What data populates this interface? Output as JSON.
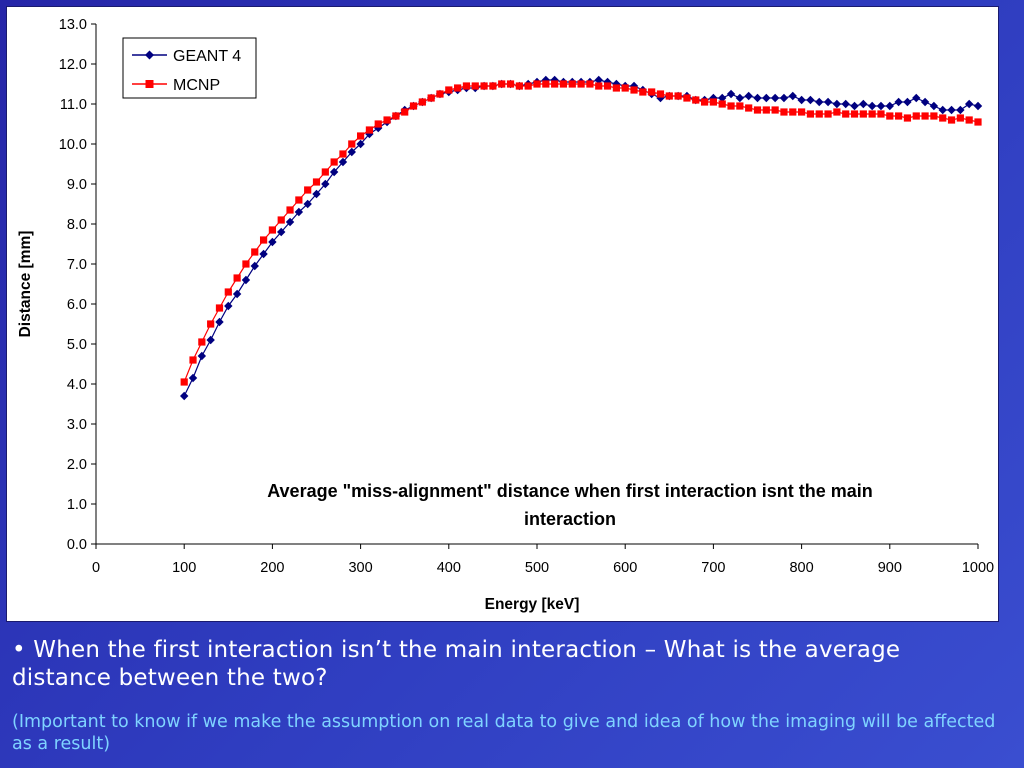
{
  "chart_data": {
    "type": "line",
    "title": "Average \"miss-alignment\" distance when first interaction isnt the main interaction",
    "title_lines": [
      "Average \"miss-alignment\" distance when first interaction isnt the main",
      "interaction"
    ],
    "xlabel": "Energy [keV]",
    "ylabel": "Distance [mm]",
    "xlim": [
      0,
      1000
    ],
    "ylim": [
      0,
      13
    ],
    "x_ticks": [
      "0",
      "100",
      "200",
      "300",
      "400",
      "500",
      "600",
      "700",
      "800",
      "900",
      "1000"
    ],
    "y_ticks": [
      "0.0",
      "1.0",
      "2.0",
      "3.0",
      "4.0",
      "5.0",
      "6.0",
      "7.0",
      "8.0",
      "9.0",
      "10.0",
      "11.0",
      "12.0",
      "13.0"
    ],
    "grid": false,
    "legend_position": "top-left",
    "series": [
      {
        "name": "GEANT 4",
        "color": "#000080",
        "marker": "diamond",
        "x": [
          100,
          110,
          120,
          130,
          140,
          150,
          160,
          170,
          180,
          190,
          200,
          210,
          220,
          230,
          240,
          250,
          260,
          270,
          280,
          290,
          300,
          310,
          320,
          330,
          340,
          350,
          360,
          370,
          380,
          390,
          400,
          410,
          420,
          430,
          440,
          450,
          460,
          470,
          480,
          490,
          500,
          510,
          520,
          530,
          540,
          550,
          560,
          570,
          580,
          590,
          600,
          610,
          620,
          630,
          640,
          650,
          660,
          670,
          680,
          690,
          700,
          710,
          720,
          730,
          740,
          750,
          760,
          770,
          780,
          790,
          800,
          810,
          820,
          830,
          840,
          850,
          860,
          870,
          880,
          890,
          900,
          910,
          920,
          930,
          940,
          950,
          960,
          970,
          980,
          990,
          1000
        ],
        "y": [
          3.7,
          4.15,
          4.7,
          5.1,
          5.55,
          5.95,
          6.25,
          6.6,
          6.95,
          7.25,
          7.55,
          7.8,
          8.05,
          8.3,
          8.5,
          8.75,
          9.0,
          9.3,
          9.55,
          9.8,
          10.0,
          10.25,
          10.4,
          10.55,
          10.7,
          10.85,
          10.95,
          11.05,
          11.15,
          11.25,
          11.3,
          11.35,
          11.4,
          11.4,
          11.45,
          11.45,
          11.5,
          11.5,
          11.45,
          11.5,
          11.55,
          11.6,
          11.6,
          11.55,
          11.55,
          11.55,
          11.55,
          11.6,
          11.55,
          11.5,
          11.45,
          11.45,
          11.35,
          11.25,
          11.15,
          11.2,
          11.2,
          11.2,
          11.1,
          11.1,
          11.15,
          11.15,
          11.25,
          11.15,
          11.2,
          11.15,
          11.15,
          11.15,
          11.15,
          11.2,
          11.1,
          11.1,
          11.05,
          11.05,
          11.0,
          11.0,
          10.95,
          11.0,
          10.95,
          10.95,
          10.95,
          11.05,
          11.05,
          11.15,
          11.05,
          10.95,
          10.85,
          10.85,
          10.85,
          11.0,
          10.95
        ]
      },
      {
        "name": "MCNP",
        "color": "#ff0000",
        "marker": "square",
        "x": [
          100,
          110,
          120,
          130,
          140,
          150,
          160,
          170,
          180,
          190,
          200,
          210,
          220,
          230,
          240,
          250,
          260,
          270,
          280,
          290,
          300,
          310,
          320,
          330,
          340,
          350,
          360,
          370,
          380,
          390,
          400,
          410,
          420,
          430,
          440,
          450,
          460,
          470,
          480,
          490,
          500,
          510,
          520,
          530,
          540,
          550,
          560,
          570,
          580,
          590,
          600,
          610,
          620,
          630,
          640,
          650,
          660,
          670,
          680,
          690,
          700,
          710,
          720,
          730,
          740,
          750,
          760,
          770,
          780,
          790,
          800,
          810,
          820,
          830,
          840,
          850,
          860,
          870,
          880,
          890,
          900,
          910,
          920,
          930,
          940,
          950,
          960,
          970,
          980,
          990,
          1000
        ],
        "y": [
          4.05,
          4.6,
          5.05,
          5.5,
          5.9,
          6.3,
          6.65,
          7.0,
          7.3,
          7.6,
          7.85,
          8.1,
          8.35,
          8.6,
          8.85,
          9.05,
          9.3,
          9.55,
          9.75,
          10.0,
          10.2,
          10.35,
          10.5,
          10.6,
          10.7,
          10.8,
          10.95,
          11.05,
          11.15,
          11.25,
          11.35,
          11.4,
          11.45,
          11.45,
          11.45,
          11.45,
          11.5,
          11.5,
          11.45,
          11.45,
          11.5,
          11.5,
          11.5,
          11.5,
          11.5,
          11.5,
          11.5,
          11.45,
          11.45,
          11.4,
          11.4,
          11.35,
          11.3,
          11.3,
          11.25,
          11.2,
          11.2,
          11.15,
          11.1,
          11.05,
          11.05,
          11.0,
          10.95,
          10.95,
          10.9,
          10.85,
          10.85,
          10.85,
          10.8,
          10.8,
          10.8,
          10.75,
          10.75,
          10.75,
          10.8,
          10.75,
          10.75,
          10.75,
          10.75,
          10.75,
          10.7,
          10.7,
          10.65,
          10.7,
          10.7,
          10.7,
          10.65,
          10.6,
          10.65,
          10.6,
          10.55
        ]
      }
    ]
  },
  "slide": {
    "bullet": "• When the first interaction isn’t the main interaction – What is the average distance between the two?",
    "note": " (Important to know if we make the assumption on real data to give and idea of how the imaging will be affected as a result)"
  }
}
